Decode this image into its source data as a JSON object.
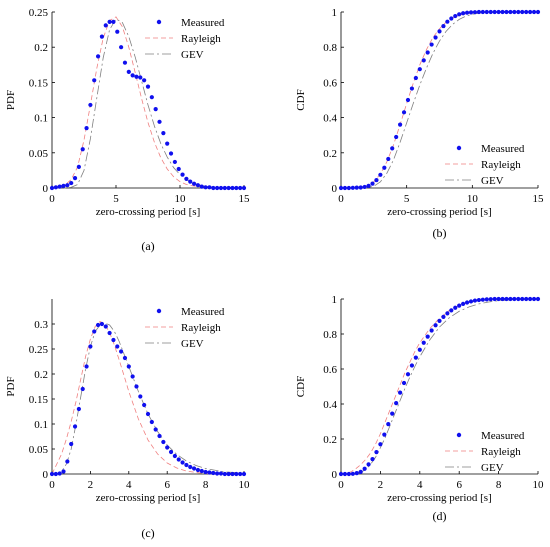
{
  "chart_data": [
    {
      "id": "a",
      "type": "scatter",
      "panel_label": "(a)",
      "xlabel": "zero-crossing period [s]",
      "ylabel": "PDF",
      "xlim": [
        0,
        15
      ],
      "ylim": [
        0,
        0.25
      ],
      "xticks": [
        0,
        5,
        10,
        15
      ],
      "xtick_labels": [
        "0",
        "5",
        "10",
        "15"
      ],
      "yticks": [
        0,
        0.05,
        0.1,
        0.15,
        0.2,
        0.25
      ],
      "ytick_labels": [
        "0",
        "0.05",
        "0.1",
        "0.15",
        "0.2",
        "0.25"
      ],
      "grid": false,
      "legend_position": "top-right",
      "series": [
        {
          "name": "Measured",
          "kind": "markers",
          "color": "#1010ee",
          "x": [
            0,
            0.3,
            0.6,
            0.9,
            1.2,
            1.5,
            1.8,
            2.1,
            2.4,
            2.7,
            3.0,
            3.3,
            3.6,
            3.9,
            4.2,
            4.5,
            4.8,
            5.1,
            5.4,
            5.7,
            6.0,
            6.3,
            6.6,
            6.9,
            7.2,
            7.5,
            7.8,
            8.1,
            8.4,
            8.7,
            9.0,
            9.3,
            9.6,
            9.9,
            10.2,
            10.5,
            10.8,
            11.1,
            11.4,
            11.7,
            12.0,
            12.3,
            12.6,
            12.9,
            13.2,
            13.5,
            13.8,
            14.1,
            14.4,
            14.7,
            15.0
          ],
          "y": [
            0,
            0.001,
            0.002,
            0.003,
            0.004,
            0.007,
            0.014,
            0.03,
            0.055,
            0.085,
            0.118,
            0.153,
            0.187,
            0.215,
            0.231,
            0.236,
            0.236,
            0.222,
            0.2,
            0.178,
            0.165,
            0.16,
            0.158,
            0.157,
            0.153,
            0.144,
            0.129,
            0.112,
            0.094,
            0.078,
            0.063,
            0.049,
            0.037,
            0.027,
            0.019,
            0.013,
            0.009,
            0.006,
            0.004,
            0.002,
            0.001,
            0.001,
            0,
            0,
            0,
            0,
            0,
            0,
            0,
            0,
            0
          ]
        },
        {
          "name": "Rayleigh",
          "kind": "dashed",
          "color": "#f08080",
          "x": [
            0,
            0.5,
            1.0,
            1.5,
            2.0,
            2.5,
            3.0,
            3.5,
            4.0,
            4.5,
            5.0,
            5.5,
            6.0,
            6.5,
            7.0,
            7.5,
            8.0,
            8.5,
            9.0,
            9.5,
            10.0,
            10.5,
            11.0,
            12.0,
            13.0,
            14.0,
            15.0
          ],
          "y": [
            0,
            0.002,
            0.004,
            0.012,
            0.03,
            0.068,
            0.118,
            0.17,
            0.213,
            0.238,
            0.243,
            0.229,
            0.2,
            0.164,
            0.127,
            0.093,
            0.065,
            0.043,
            0.027,
            0.016,
            0.009,
            0.005,
            0.003,
            0.001,
            0,
            0,
            0
          ]
        },
        {
          "name": "GEV",
          "kind": "dashdot",
          "color": "#808080",
          "x": [
            0,
            0.5,
            1.0,
            1.5,
            2.0,
            2.5,
            3.0,
            3.5,
            4.0,
            4.5,
            5.0,
            5.5,
            6.0,
            6.5,
            7.0,
            7.5,
            8.0,
            8.5,
            9.0,
            9.5,
            10.0,
            10.5,
            11.0,
            12.0,
            13.0,
            14.0,
            15.0
          ],
          "y": [
            0,
            0,
            0,
            0.001,
            0.005,
            0.025,
            0.07,
            0.128,
            0.185,
            0.225,
            0.24,
            0.235,
            0.215,
            0.186,
            0.152,
            0.118,
            0.088,
            0.063,
            0.044,
            0.029,
            0.019,
            0.012,
            0.007,
            0.002,
            0.001,
            0,
            0
          ]
        }
      ]
    },
    {
      "id": "b",
      "type": "scatter",
      "panel_label": "(b)",
      "xlabel": "zero-crossing period [s]",
      "ylabel": "CDF",
      "xlim": [
        0,
        15
      ],
      "ylim": [
        0,
        1
      ],
      "xticks": [
        0,
        5,
        10,
        15
      ],
      "xtick_labels": [
        "0",
        "5",
        "10",
        "15"
      ],
      "yticks": [
        0,
        0.2,
        0.4,
        0.6,
        0.8,
        1
      ],
      "ytick_labels": [
        "0",
        "0.2",
        "0.4",
        "0.6",
        "0.8",
        "1"
      ],
      "grid": false,
      "legend_position": "bottom-right",
      "series": [
        {
          "name": "Measured",
          "kind": "markers",
          "color": "#1010ee",
          "x": [
            0,
            0.3,
            0.6,
            0.9,
            1.2,
            1.5,
            1.8,
            2.1,
            2.4,
            2.7,
            3.0,
            3.3,
            3.6,
            3.9,
            4.2,
            4.5,
            4.8,
            5.1,
            5.4,
            5.7,
            6.0,
            6.3,
            6.6,
            6.9,
            7.2,
            7.5,
            7.8,
            8.1,
            8.4,
            8.7,
            9.0,
            9.3,
            9.6,
            9.9,
            10.2,
            10.5,
            10.8,
            11.1,
            11.4,
            11.7,
            12.0,
            12.3,
            12.6,
            12.9,
            13.2,
            13.5,
            13.8,
            14.1,
            14.4,
            14.7,
            15.0
          ],
          "y": [
            0,
            0,
            0,
            0.001,
            0.002,
            0.003,
            0.006,
            0.012,
            0.025,
            0.045,
            0.075,
            0.115,
            0.165,
            0.225,
            0.29,
            0.36,
            0.43,
            0.5,
            0.565,
            0.625,
            0.675,
            0.725,
            0.77,
            0.815,
            0.855,
            0.89,
            0.92,
            0.945,
            0.963,
            0.977,
            0.987,
            0.993,
            0.996,
            0.998,
            0.999,
            1,
            1,
            1,
            1,
            1,
            1,
            1,
            1,
            1,
            1,
            1,
            1,
            1,
            1,
            1,
            1
          ]
        },
        {
          "name": "Rayleigh",
          "kind": "dashed",
          "color": "#f08080",
          "x": [
            0,
            0.5,
            1.0,
            1.5,
            2.0,
            2.5,
            3.0,
            3.5,
            4.0,
            4.5,
            5.0,
            5.5,
            6.0,
            6.5,
            7.0,
            7.5,
            8.0,
            8.5,
            9.0,
            9.5,
            10.0,
            10.5,
            11.0,
            12.0,
            13.0,
            14.0,
            15.0
          ],
          "y": [
            0,
            0,
            0.001,
            0.004,
            0.012,
            0.035,
            0.08,
            0.15,
            0.245,
            0.36,
            0.48,
            0.595,
            0.7,
            0.785,
            0.855,
            0.905,
            0.942,
            0.966,
            0.981,
            0.99,
            0.995,
            0.998,
            0.999,
            1,
            1,
            1,
            1
          ]
        },
        {
          "name": "GEV",
          "kind": "dashdot",
          "color": "#808080",
          "x": [
            0,
            0.5,
            1.0,
            1.5,
            2.0,
            2.5,
            3.0,
            3.5,
            4.0,
            4.5,
            5.0,
            5.5,
            6.0,
            6.5,
            7.0,
            7.5,
            8.0,
            8.5,
            9.0,
            9.5,
            10.0,
            10.5,
            11.0,
            12.0,
            13.0,
            14.0,
            15.0
          ],
          "y": [
            0,
            0,
            0,
            0,
            0.002,
            0.01,
            0.035,
            0.085,
            0.16,
            0.26,
            0.37,
            0.48,
            0.585,
            0.68,
            0.765,
            0.835,
            0.89,
            0.93,
            0.958,
            0.976,
            0.987,
            0.993,
            0.997,
            0.999,
            1,
            1,
            1
          ]
        }
      ]
    },
    {
      "id": "c",
      "type": "scatter",
      "panel_label": "(c)",
      "xlabel": "zero-crossing period [s]",
      "ylabel": "PDF",
      "xlim": [
        0,
        10
      ],
      "ylim": [
        0,
        0.35
      ],
      "xticks": [
        0,
        2,
        4,
        6,
        8,
        10
      ],
      "xtick_labels": [
        "0",
        "2",
        "4",
        "6",
        "8",
        "10"
      ],
      "yticks": [
        0,
        0.05,
        0.1,
        0.15,
        0.2,
        0.25,
        0.3
      ],
      "ytick_labels": [
        "0",
        "0.05",
        "0.1",
        "0.15",
        "0.2",
        "0.25",
        "0.3"
      ],
      "grid": false,
      "legend_position": "top-right",
      "series": [
        {
          "name": "Measured",
          "kind": "markers",
          "color": "#1010ee",
          "x": [
            0,
            0.2,
            0.4,
            0.6,
            0.8,
            1.0,
            1.2,
            1.4,
            1.6,
            1.8,
            2.0,
            2.2,
            2.4,
            2.6,
            2.8,
            3.0,
            3.2,
            3.4,
            3.6,
            3.8,
            4.0,
            4.2,
            4.4,
            4.6,
            4.8,
            5.0,
            5.2,
            5.4,
            5.6,
            5.8,
            6.0,
            6.2,
            6.4,
            6.6,
            6.8,
            7.0,
            7.2,
            7.4,
            7.6,
            7.8,
            8.0,
            8.2,
            8.4,
            8.6,
            8.8,
            9.0,
            9.2,
            9.4,
            9.6,
            9.8,
            10.0
          ],
          "y": [
            0,
            0,
            0.001,
            0.005,
            0.025,
            0.06,
            0.095,
            0.13,
            0.17,
            0.215,
            0.255,
            0.285,
            0.298,
            0.3,
            0.295,
            0.282,
            0.268,
            0.255,
            0.245,
            0.232,
            0.215,
            0.195,
            0.175,
            0.155,
            0.138,
            0.12,
            0.104,
            0.089,
            0.076,
            0.064,
            0.053,
            0.044,
            0.036,
            0.029,
            0.023,
            0.018,
            0.014,
            0.011,
            0.008,
            0.006,
            0.004,
            0.003,
            0.002,
            0.001,
            0.001,
            0,
            0,
            0,
            0,
            0,
            0
          ]
        },
        {
          "name": "Rayleigh",
          "kind": "dashed",
          "color": "#f08080",
          "x": [
            0,
            0.25,
            0.5,
            0.75,
            1.0,
            1.25,
            1.5,
            1.75,
            2.0,
            2.25,
            2.5,
            2.75,
            3.0,
            3.25,
            3.5,
            3.75,
            4.0,
            4.5,
            5.0,
            5.5,
            6.0,
            6.5,
            7.0,
            7.5,
            8.0,
            9.0,
            10.0
          ],
          "y": [
            0,
            0.02,
            0.04,
            0.07,
            0.105,
            0.145,
            0.19,
            0.235,
            0.27,
            0.295,
            0.305,
            0.3,
            0.283,
            0.258,
            0.228,
            0.197,
            0.165,
            0.11,
            0.068,
            0.04,
            0.022,
            0.012,
            0.006,
            0.003,
            0.001,
            0,
            0
          ]
        },
        {
          "name": "GEV",
          "kind": "dashdot",
          "color": "#808080",
          "x": [
            0,
            0.25,
            0.5,
            0.75,
            1.0,
            1.25,
            1.5,
            1.75,
            2.0,
            2.25,
            2.5,
            2.75,
            3.0,
            3.25,
            3.5,
            3.75,
            4.0,
            4.5,
            5.0,
            5.5,
            6.0,
            6.5,
            7.0,
            7.5,
            8.0,
            9.0,
            10.0
          ],
          "y": [
            0,
            0,
            0.005,
            0.02,
            0.05,
            0.1,
            0.155,
            0.21,
            0.255,
            0.285,
            0.298,
            0.302,
            0.298,
            0.285,
            0.265,
            0.24,
            0.215,
            0.165,
            0.12,
            0.085,
            0.058,
            0.039,
            0.026,
            0.017,
            0.011,
            0.004,
            0.002
          ]
        }
      ]
    },
    {
      "id": "d",
      "type": "scatter",
      "panel_label": "(d)",
      "xlabel": "zero-crossing period [s]",
      "ylabel": "CDF",
      "xlim": [
        0,
        10
      ],
      "ylim": [
        0,
        1
      ],
      "xticks": [
        0,
        2,
        4,
        6,
        8,
        10
      ],
      "xtick_labels": [
        "0",
        "2",
        "4",
        "6",
        "8",
        "10"
      ],
      "yticks": [
        0,
        0.2,
        0.4,
        0.6,
        0.8,
        1
      ],
      "ytick_labels": [
        "0",
        "0.2",
        "0.4",
        "0.6",
        "0.8",
        "1"
      ],
      "grid": false,
      "legend_position": "bottom-right",
      "series": [
        {
          "name": "Measured",
          "kind": "markers",
          "color": "#1010ee",
          "x": [
            0,
            0.2,
            0.4,
            0.6,
            0.8,
            1.0,
            1.2,
            1.4,
            1.6,
            1.8,
            2.0,
            2.2,
            2.4,
            2.6,
            2.8,
            3.0,
            3.2,
            3.4,
            3.6,
            3.8,
            4.0,
            4.2,
            4.4,
            4.6,
            4.8,
            5.0,
            5.2,
            5.4,
            5.6,
            5.8,
            6.0,
            6.2,
            6.4,
            6.6,
            6.8,
            7.0,
            7.2,
            7.4,
            7.6,
            7.8,
            8.0,
            8.2,
            8.4,
            8.6,
            8.8,
            9.0,
            9.2,
            9.4,
            9.6,
            9.8,
            10.0
          ],
          "y": [
            0,
            0,
            0,
            0.001,
            0.005,
            0.012,
            0.03,
            0.055,
            0.085,
            0.125,
            0.17,
            0.225,
            0.285,
            0.345,
            0.405,
            0.465,
            0.52,
            0.57,
            0.62,
            0.665,
            0.71,
            0.75,
            0.785,
            0.82,
            0.85,
            0.875,
            0.898,
            0.918,
            0.935,
            0.95,
            0.962,
            0.972,
            0.98,
            0.986,
            0.991,
            0.994,
            0.996,
            0.998,
            0.999,
            1,
            1,
            1,
            1,
            1,
            1,
            1,
            1,
            1,
            1,
            1,
            1
          ]
        },
        {
          "name": "Rayleigh",
          "kind": "dashed",
          "color": "#f08080",
          "x": [
            0,
            0.25,
            0.5,
            0.75,
            1.0,
            1.25,
            1.5,
            1.75,
            2.0,
            2.25,
            2.5,
            2.75,
            3.0,
            3.25,
            3.5,
            3.75,
            4.0,
            4.5,
            5.0,
            5.5,
            6.0,
            6.5,
            7.0,
            7.5,
            8.0,
            9.0,
            10.0
          ],
          "y": [
            0,
            0.003,
            0.012,
            0.03,
            0.053,
            0.083,
            0.12,
            0.17,
            0.23,
            0.3,
            0.37,
            0.44,
            0.51,
            0.58,
            0.64,
            0.7,
            0.75,
            0.83,
            0.89,
            0.935,
            0.963,
            0.98,
            0.99,
            0.995,
            0.998,
            1,
            1
          ]
        },
        {
          "name": "GEV",
          "kind": "dashdot",
          "color": "#808080",
          "x": [
            0,
            0.25,
            0.5,
            0.75,
            1.0,
            1.25,
            1.5,
            1.75,
            2.0,
            2.25,
            2.5,
            2.75,
            3.0,
            3.25,
            3.5,
            3.75,
            4.0,
            4.5,
            5.0,
            5.5,
            6.0,
            6.5,
            7.0,
            7.5,
            8.0,
            9.0,
            10.0
          ],
          "y": [
            0,
            0,
            0,
            0.003,
            0.01,
            0.025,
            0.055,
            0.095,
            0.15,
            0.21,
            0.28,
            0.35,
            0.42,
            0.49,
            0.555,
            0.615,
            0.67,
            0.765,
            0.84,
            0.893,
            0.93,
            0.955,
            0.972,
            0.983,
            0.99,
            0.997,
            0.999
          ]
        }
      ]
    }
  ]
}
